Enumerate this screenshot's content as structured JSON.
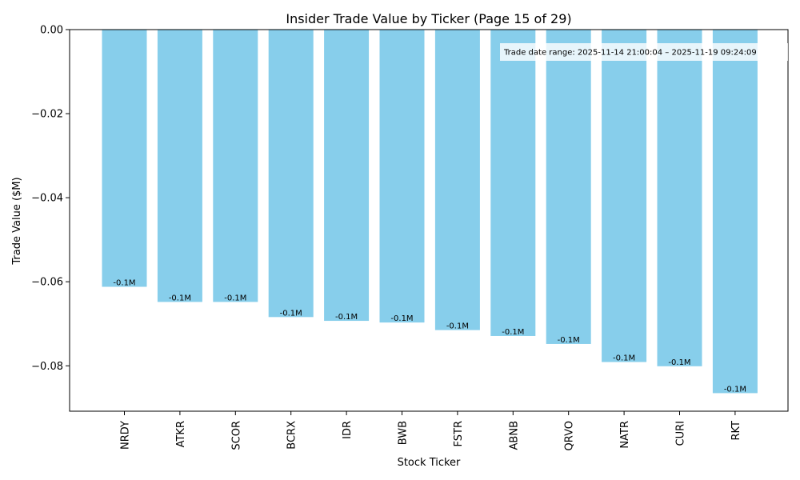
{
  "chart_data": {
    "type": "bar",
    "title": "Insider Trade Value by Ticker (Page 15 of 29)",
    "xlabel": "Stock Ticker",
    "ylabel": "Trade Value ($M)",
    "categories": [
      "NRDY",
      "ATKR",
      "SCOR",
      "BCRX",
      "IDR",
      "BWB",
      "FSTR",
      "ABNB",
      "QRVO",
      "NATR",
      "CURI",
      "RKT"
    ],
    "values": [
      -0.0612,
      -0.0648,
      -0.0648,
      -0.0684,
      -0.0693,
      -0.0697,
      -0.0715,
      -0.0729,
      -0.0748,
      -0.0791,
      -0.0801,
      -0.0865
    ],
    "data_labels": [
      "-0.1M",
      "-0.1M",
      "-0.1M",
      "-0.1M",
      "-0.1M",
      "-0.1M",
      "-0.1M",
      "-0.1M",
      "-0.1M",
      "-0.1M",
      "-0.1M",
      "-0.1M"
    ],
    "ylim": [
      -0.0908,
      0.0
    ],
    "yticks": [
      0.0,
      -0.02,
      -0.04,
      -0.06,
      -0.08
    ],
    "ytick_labels": [
      "0.00",
      "−0.02",
      "−0.04",
      "−0.06",
      "−0.08"
    ],
    "bar_color": "#87ceeb",
    "grid": false,
    "annotation": "Trade date range: 2025-11-14 21:00:04 – 2025-11-19 09:24:09"
  }
}
